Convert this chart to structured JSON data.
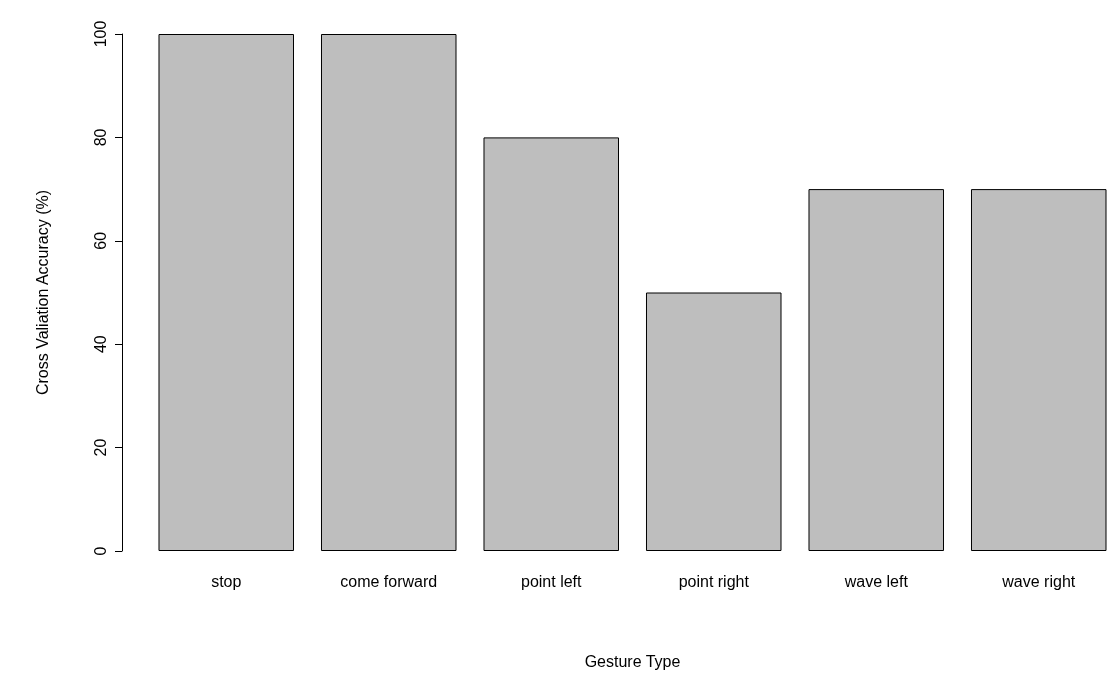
{
  "chart_data": {
    "type": "bar",
    "xlabel": "Gesture Type",
    "ylabel": "Cross Valiation Accuracy (%)",
    "categories": [
      "stop",
      "come forward",
      "point left",
      "point right",
      "wave left",
      "wave right"
    ],
    "values": [
      100,
      100,
      80,
      50,
      70,
      70
    ],
    "color": "#bebebe",
    "ylim": [
      0,
      100
    ],
    "yticks": [
      0,
      20,
      40,
      60,
      80,
      100
    ],
    "grid": false
  }
}
